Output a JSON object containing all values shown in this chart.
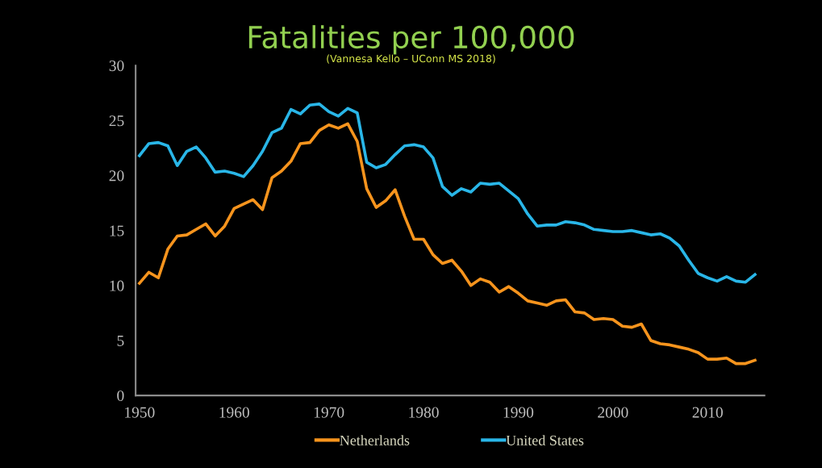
{
  "chart_data": {
    "type": "line",
    "title": "Fatalities per 100,000",
    "subtitle": "(Vannesa Kello – UConn MS 2018)",
    "x": [
      1950,
      1951,
      1952,
      1953,
      1954,
      1955,
      1956,
      1957,
      1958,
      1959,
      1960,
      1961,
      1962,
      1963,
      1964,
      1965,
      1966,
      1967,
      1968,
      1969,
      1970,
      1971,
      1972,
      1973,
      1974,
      1975,
      1976,
      1977,
      1978,
      1979,
      1980,
      1981,
      1982,
      1983,
      1984,
      1985,
      1986,
      1987,
      1988,
      1989,
      1990,
      1991,
      1992,
      1993,
      1994,
      1995,
      1996,
      1997,
      1998,
      1999,
      2000,
      2001,
      2002,
      2003,
      2004,
      2005,
      2006,
      2007,
      2008,
      2009,
      2010,
      2011,
      2012,
      2013,
      2014,
      2015
    ],
    "series": [
      {
        "name": "Netherlands",
        "color": "#f7941d",
        "values": [
          10.2,
          11.2,
          10.7,
          13.3,
          14.5,
          14.6,
          15.1,
          15.6,
          14.5,
          15.4,
          17.0,
          17.4,
          17.8,
          16.9,
          19.8,
          20.4,
          21.3,
          22.9,
          23.0,
          24.1,
          24.6,
          24.3,
          24.7,
          23.1,
          18.8,
          17.1,
          17.7,
          18.7,
          16.3,
          14.2,
          14.2,
          12.8,
          12.0,
          12.3,
          11.3,
          10.0,
          10.6,
          10.3,
          9.4,
          9.9,
          9.3,
          8.6,
          8.4,
          8.2,
          8.6,
          8.7,
          7.6,
          7.5,
          6.9,
          7.0,
          6.9,
          6.3,
          6.2,
          6.5,
          5.0,
          4.7,
          4.6,
          4.4,
          4.2,
          3.9,
          3.3,
          3.3,
          3.4,
          2.9,
          2.9,
          3.2
        ]
      },
      {
        "name": "United States",
        "color": "#29b6e8",
        "values": [
          21.8,
          22.9,
          23.0,
          22.7,
          20.9,
          22.2,
          22.6,
          21.6,
          20.3,
          20.4,
          20.2,
          19.9,
          20.9,
          22.2,
          23.9,
          24.3,
          26.0,
          25.6,
          26.4,
          26.5,
          25.8,
          25.4,
          26.1,
          25.7,
          21.2,
          20.7,
          21.0,
          21.9,
          22.7,
          22.8,
          22.6,
          21.6,
          19.0,
          18.2,
          18.8,
          18.5,
          19.3,
          19.2,
          19.3,
          18.6,
          17.9,
          16.5,
          15.4,
          15.5,
          15.5,
          15.8,
          15.7,
          15.5,
          15.1,
          15.0,
          14.9,
          14.9,
          15.0,
          14.8,
          14.6,
          14.7,
          14.3,
          13.6,
          12.3,
          11.1,
          10.7,
          10.4,
          10.8,
          10.4,
          10.3,
          11.0
        ]
      }
    ],
    "xlim": [
      1949.6,
      2016
    ],
    "xticks": [
      1950,
      1960,
      1970,
      1980,
      1990,
      2000,
      2010
    ],
    "ylim": [
      0,
      30
    ],
    "yticks": [
      0,
      5,
      10,
      15,
      20,
      25,
      30
    ],
    "grid": false,
    "legend": "bottom",
    "marker": "none",
    "line_style": "solid"
  }
}
